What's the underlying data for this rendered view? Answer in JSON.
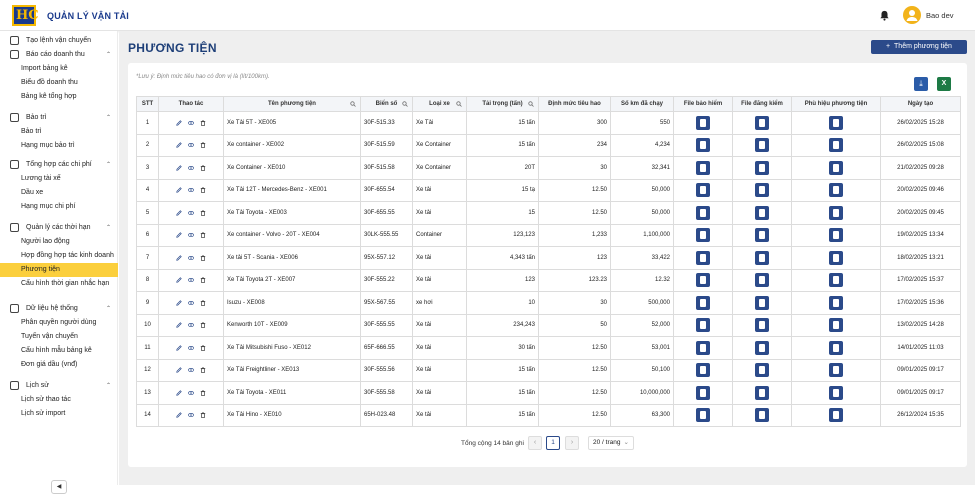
{
  "app": {
    "logo_text": "HC",
    "title": "QUẢN LÝ VẬN TẢI",
    "user": "Bao dev"
  },
  "sidebar": {
    "entries": [
      {
        "kind": "group",
        "label": "Tạo lệnh vận chuyển",
        "icon": "external-link-icon",
        "chevron": false
      },
      {
        "kind": "group",
        "label": "Báo cáo doanh thu",
        "icon": "report-icon",
        "chevron": true
      },
      {
        "kind": "item",
        "label": "Import bảng kê"
      },
      {
        "kind": "item",
        "label": "Biểu đồ doanh thu"
      },
      {
        "kind": "item",
        "label": "Bảng kê tổng hợp"
      },
      {
        "kind": "group",
        "label": "Bảo trì",
        "icon": "wrench-icon",
        "chevron": true
      },
      {
        "kind": "item",
        "label": "Bảo trì"
      },
      {
        "kind": "item",
        "label": "Hạng mục bảo trì"
      },
      {
        "kind": "group",
        "label": "Tổng hợp các chi phí",
        "icon": "dollar-icon",
        "chevron": true
      },
      {
        "kind": "item",
        "label": "Lương tài xế"
      },
      {
        "kind": "item",
        "label": "Dầu xe"
      },
      {
        "kind": "item",
        "label": "Hạng mục chi phí"
      },
      {
        "kind": "group",
        "label": "Quản lý các thời hạn",
        "icon": "clock-icon",
        "chevron": true
      },
      {
        "kind": "item",
        "label": "Người lao động"
      },
      {
        "kind": "item",
        "label": "Hợp đồng hợp tác kinh doanh"
      },
      {
        "kind": "item",
        "label": "Phương tiện",
        "active": true
      },
      {
        "kind": "item",
        "label": "Cấu hình thời gian nhắc hạn"
      },
      {
        "kind": "group",
        "label": "Dữ liệu hệ thống",
        "icon": "database-icon",
        "chevron": true
      },
      {
        "kind": "item",
        "label": "Phân quyền người dùng"
      },
      {
        "kind": "item",
        "label": "Tuyến vận chuyển"
      },
      {
        "kind": "item",
        "label": "Cấu hình mẫu bảng kê"
      },
      {
        "kind": "item",
        "label": "Đơn giá dầu (vnđ)"
      },
      {
        "kind": "group",
        "label": "Lịch sử",
        "icon": "history-icon",
        "chevron": true
      },
      {
        "kind": "item",
        "label": "Lịch sử thao tác"
      },
      {
        "kind": "item",
        "label": "Lịch sử import"
      }
    ]
  },
  "page": {
    "title": "PHƯƠNG TIỆN",
    "add_button": "Thêm phương tiện",
    "note": "*Lưu ý: Định mức tiêu hao có đơn vị là (lít/100km)."
  },
  "table": {
    "columns": [
      "STT",
      "Thao tác",
      "Tên phương tiện",
      "Biển số",
      "Loại xe",
      "Tải trọng (tấn)",
      "Định mức tiêu hao",
      "Số km đã chạy",
      "File bảo hiểm",
      "File đăng kiểm",
      "Phù hiệu phương tiện",
      "Ngày tạo"
    ],
    "rows": [
      [
        "1",
        "Xe Tải 5T - XE005",
        "30F-515.33",
        "Xe Tải",
        "15 tấn",
        "300",
        "550",
        "26/02/2025 15:28"
      ],
      [
        "2",
        "Xe container - XE002",
        "30F-515.59",
        "Xe Container",
        "15 tấn",
        "234",
        "4,234",
        "26/02/2025 15:08"
      ],
      [
        "3",
        "Xe Container - XE010",
        "30F-515.58",
        "Xe Container",
        "20T",
        "30",
        "32,341",
        "21/02/2025 09:28"
      ],
      [
        "4",
        "Xe Tải 12T - Mercedes-Benz - XE001",
        "30F-655.54",
        "Xe tải",
        "15 tạ",
        "12.50",
        "50,000",
        "20/02/2025 09:46"
      ],
      [
        "5",
        "Xe Tải Toyota - XE003",
        "30F-655.55",
        "Xe tải",
        "15",
        "12.50",
        "50,000",
        "20/02/2025 09:45"
      ],
      [
        "6",
        "Xe container - Volvo - 20T - XE004",
        "30LK-555.55",
        "Container",
        "123,123",
        "1,233",
        "1,100,000",
        "19/02/2025 13:34"
      ],
      [
        "7",
        "Xe tải 5T - Scania - XE006",
        "95X-557.12",
        "Xe tải",
        "4,343 tấn",
        "123",
        "33,422",
        "18/02/2025 13:21"
      ],
      [
        "8",
        "Xe Tải Toyota 2T - XE007",
        "30F-555.22",
        "Xe tải",
        "123",
        "123.23",
        "12.32",
        "17/02/2025 15:37"
      ],
      [
        "9",
        "Isuzu - XE008",
        "95X-567.55",
        "xe hơi",
        "10",
        "30",
        "500,000",
        "17/02/2025 15:36"
      ],
      [
        "10",
        "Kenworth 10T - XE009",
        "30F-555.55",
        "Xe tải",
        "234,243",
        "50",
        "52,000",
        "13/02/2025 14:28"
      ],
      [
        "11",
        "Xe Tải Mitsubishi Fuso - XE012",
        "65F-666.55",
        "Xe tải",
        "30 tấn",
        "12.50",
        "53,001",
        "14/01/2025 11:03"
      ],
      [
        "12",
        "Xe Tải Freightliner - XE013",
        "30F-555.56",
        "Xe tải",
        "15 tấn",
        "12.50",
        "50,100",
        "09/01/2025 09:17"
      ],
      [
        "13",
        "Xe Tải Toyota - XE011",
        "30F-555.58",
        "Xe tải",
        "15 tấn",
        "12.50",
        "10,000,000",
        "09/01/2025 09:17"
      ],
      [
        "14",
        "Xe Tải Hino - XE010",
        "65H-023.48",
        "Xe tải",
        "15 tấn",
        "12.50",
        "63,300",
        "26/12/2024 15:35"
      ]
    ]
  },
  "pagination": {
    "total": "Tổng cộng 14 bản ghi",
    "page": "1",
    "page_size": "20 / trang"
  }
}
